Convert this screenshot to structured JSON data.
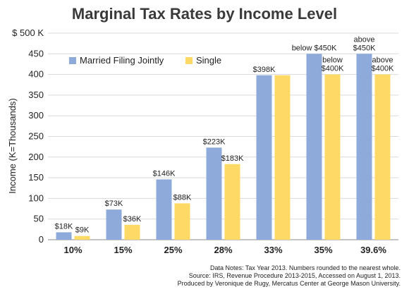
{
  "chart_data": {
    "type": "bar",
    "title": "Marginal Tax Rates by Income Level",
    "ylabel": "Income (K=Thousands)",
    "ylim": [
      0,
      500
    ],
    "yticks": [
      0,
      50,
      100,
      150,
      200,
      250,
      300,
      350,
      400,
      450,
      500
    ],
    "top_tick_label": "$ 500 K",
    "categories": [
      "10%",
      "15%",
      "25%",
      "28%",
      "33%",
      "35%",
      "39.6%"
    ],
    "grid": true,
    "legend_position": "upper-left",
    "series": [
      {
        "name": "Married Filing Jointly",
        "color": "#8eaadb",
        "values": [
          18,
          73,
          146,
          223,
          398,
          450,
          450
        ],
        "labels": [
          [
            "$18K"
          ],
          [
            "$73K"
          ],
          [
            "$146K"
          ],
          [
            "$223K"
          ],
          [
            "$398K"
          ],
          [
            "below $450K"
          ],
          [
            "above",
            "$450K"
          ]
        ]
      },
      {
        "name": "Single",
        "color": "#ffd966",
        "values": [
          9,
          36,
          88,
          183,
          398,
          400,
          400
        ],
        "labels": [
          [
            "$9K"
          ],
          [
            "$36K"
          ],
          [
            "$88K"
          ],
          [
            "$183K"
          ],
          [],
          [
            "below",
            "$400K"
          ],
          [
            "above",
            "$400K"
          ]
        ]
      }
    ],
    "notes": [
      "Data Notes: Tax Year 2013. Numbers rounded to the nearest whole.",
      "Source: IRS, Revenue Procedure 2013-2015, Accessed on August 1, 2013.",
      "Produced by Veronique de Rugy, Mercatus Center at George Mason University."
    ]
  }
}
